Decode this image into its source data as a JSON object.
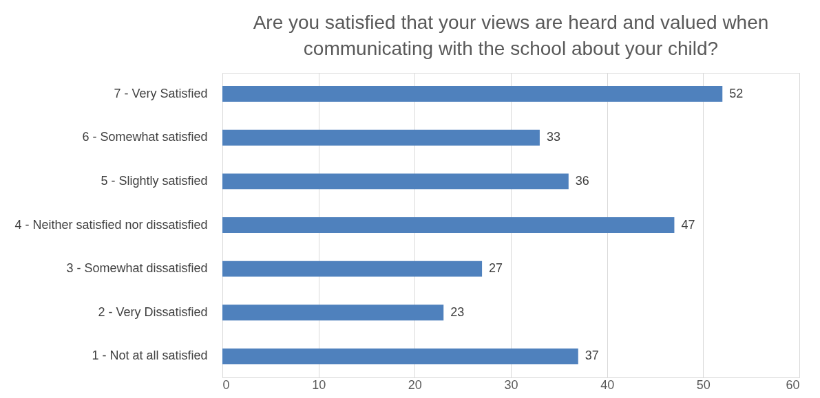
{
  "chart_data": {
    "type": "bar",
    "orientation": "horizontal",
    "title": "Are you satisfied that your views are heard and valued when communicating with the school about your child?",
    "categories": [
      "7 - Very Satisfied",
      "6 - Somewhat satisfied",
      "5 - Slightly satisfied",
      "4 - Neither satisfied nor dissatisfied",
      "3 - Somewhat dissatisfied",
      "2 - Very Dissatisfied",
      "1 - Not at all satisfied"
    ],
    "values": [
      52,
      33,
      36,
      47,
      27,
      23,
      37
    ],
    "color": "#4f81bd",
    "xlim": [
      0,
      60
    ],
    "xticks": [
      0,
      10,
      20,
      30,
      40,
      50,
      60
    ],
    "grid": "x",
    "data_labels": true
  }
}
